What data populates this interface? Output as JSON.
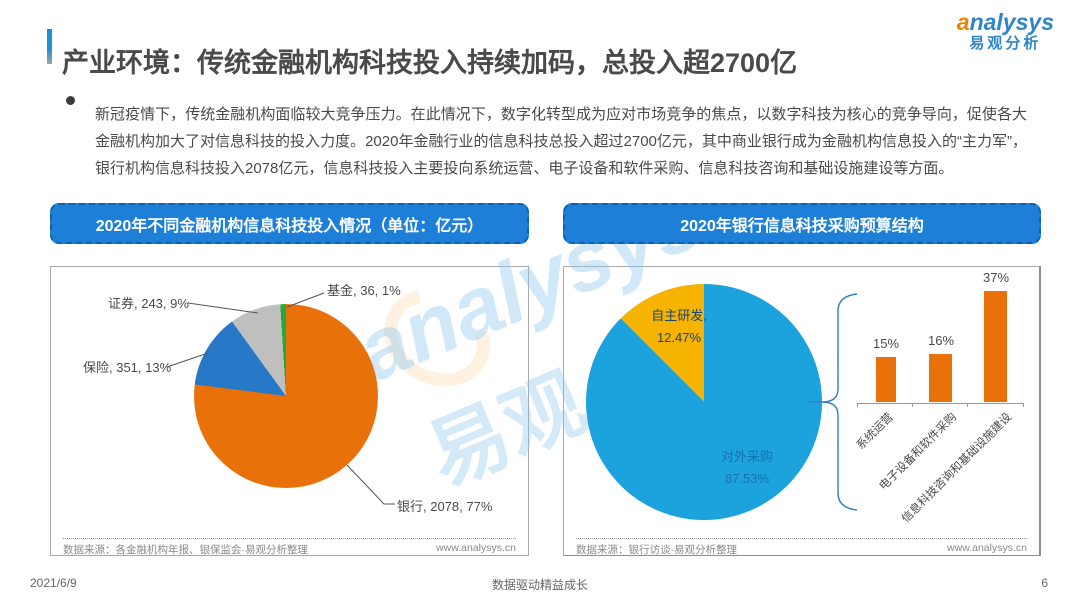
{
  "header": {
    "title": "产业环境：传统金融机构科技投入持续加码，总投入超2700亿",
    "logo": {
      "brand": "analysys",
      "brand_cn": "易观分析"
    }
  },
  "summary": {
    "text": "新冠疫情下，传统金融机构面临较大竞争压力。在此情况下，数字化转型成为应对市场竞争的焦点，以数字科技为核心的竞争导向，促使各大金融机构加大了对信息科技的投入力度。2020年金融行业的信息科技总投入超过2700亿元，其中商业银行成为金融机构信息投入的“主力军”， 银行机构信息科技投入2078亿元，信息科技投入主要投向系统运营、电子设备和软件采购、信息科技咨询和基础设施建设等方面。"
  },
  "watermark": {
    "text_en": "analysys",
    "text_cn": "易观"
  },
  "left_panel": {
    "header": "2020年不同金融机构信息科技投入情况（单位：亿元）",
    "source": "数据来源：各金融机构年报、银保监会·易观分析整理",
    "website": "www.analysys.cn"
  },
  "right_panel": {
    "header": "2020年银行信息科技采购预算结构",
    "source": "数据来源：银行访谈·易观分析整理",
    "website": "www.analysys.cn"
  },
  "footer": {
    "date": "2021/6/9",
    "slogan": "数据驱动精益成长",
    "page": "6"
  },
  "chart_data": [
    {
      "type": "pie",
      "title": "2020年不同金融机构信息科技投入情况（单位：亿元）",
      "unit": "亿元",
      "start_angle_deg": 0,
      "direction": "clockwise",
      "legend": "none",
      "slices": [
        {
          "name": "银行",
          "value": 2078,
          "percent": 77,
          "color": "#E8710A",
          "label": "银行, 2078, 77%"
        },
        {
          "name": "保险",
          "value": 351,
          "percent": 13,
          "color": "#2878C8",
          "label": "保险, 351, 13%"
        },
        {
          "name": "证券",
          "value": 243,
          "percent": 9,
          "color": "#BFBFBF",
          "label": "证券, 243, 9%"
        },
        {
          "name": "基金",
          "value": 36,
          "percent": 1,
          "color": "#21A93C",
          "label": "基金, 36, 1%"
        }
      ]
    },
    {
      "type": "pie",
      "title": "2020年银行信息科技采购预算结构",
      "start_angle_deg": 0,
      "direction": "clockwise",
      "legend": "none",
      "slices": [
        {
          "name": "对外采购",
          "percent": 87.53,
          "color": "#1CA2DC",
          "label_line1": "对外采购",
          "label_line2": "87.53%"
        },
        {
          "name": "自主研发",
          "percent": 12.47,
          "color": "#F6B400",
          "label_line1": "自主研发,",
          "label_line2": "12.47%"
        }
      ]
    },
    {
      "type": "bar",
      "categories": [
        "系统运营",
        "电子设备和软件采购",
        "信息科技咨询和基础设施建设"
      ],
      "values": [
        15,
        16,
        37
      ],
      "labels": [
        "15%",
        "16%",
        "37%"
      ],
      "bar_color": "#E8710A",
      "ylim": [
        0,
        40
      ],
      "grid": false
    }
  ]
}
